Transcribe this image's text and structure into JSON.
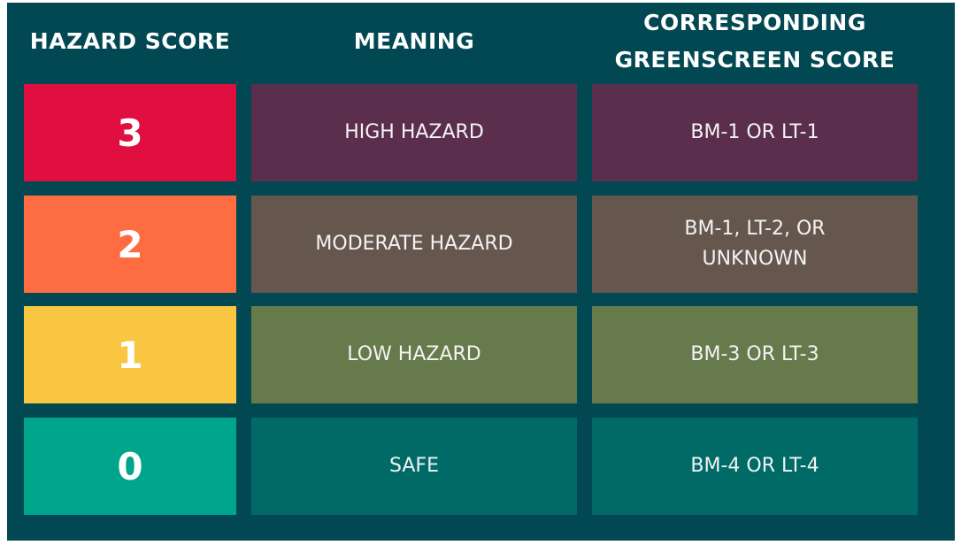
{
  "header": {
    "col1": "HAZARD SCORE",
    "col2": "MEANING",
    "col3": "CORRESPONDING GREENSCREEN SCORE"
  },
  "rows": [
    {
      "score": "3",
      "meaning": "HIGH HAZARD",
      "greenscreen": "BM-1 OR LT-1",
      "score_color": "#E10F3F",
      "row_color": "#5B2E4D"
    },
    {
      "score": "2",
      "meaning": "MODERATE HAZARD",
      "greenscreen": "BM-1, LT-2, OR UNKNOWN",
      "score_color": "#FE6D42",
      "row_color": "#66574E"
    },
    {
      "score": "1",
      "meaning": "LOW HAZARD",
      "greenscreen": "BM-3 OR LT-3",
      "score_color": "#F9C641",
      "row_color": "#677A4C"
    },
    {
      "score": "0",
      "meaning": "SAFE",
      "greenscreen": "BM-4 OR LT-4",
      "score_color": "#00A68B",
      "row_color": "#006A66"
    }
  ],
  "colors": {
    "background": "#024853",
    "text": "#FFFFFF"
  }
}
